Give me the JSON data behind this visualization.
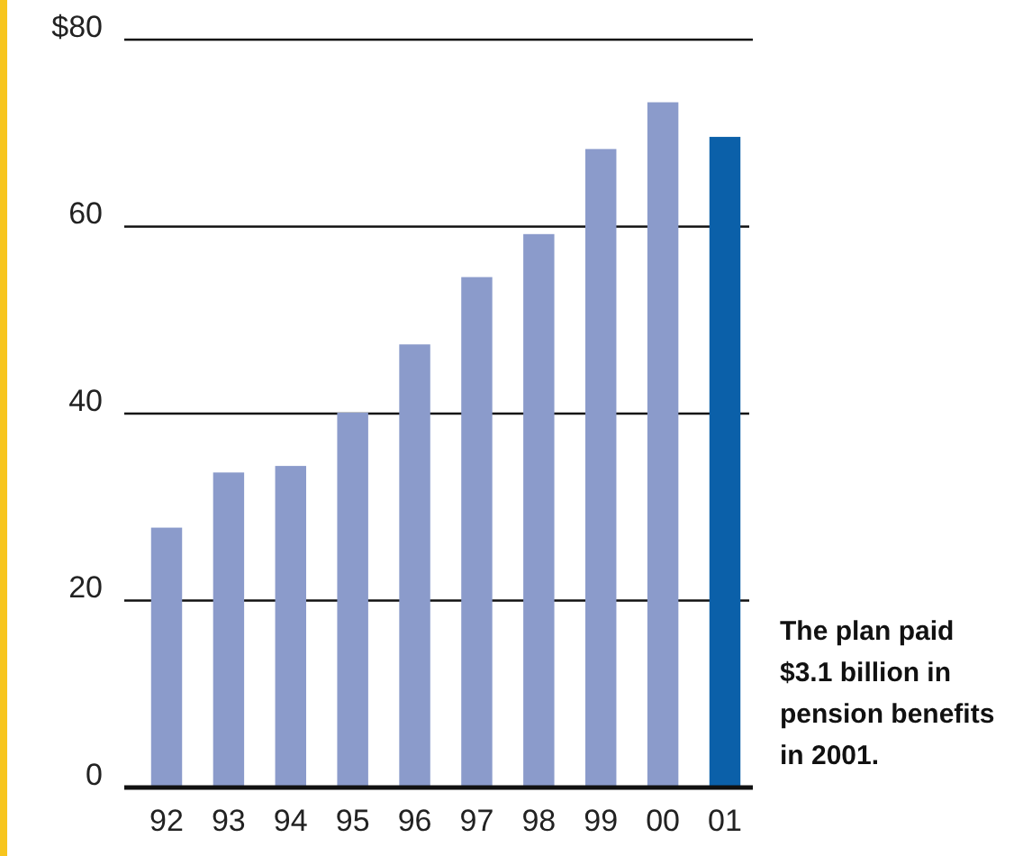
{
  "chart_data": {
    "type": "bar",
    "categories": [
      "92",
      "93",
      "94",
      "95",
      "96",
      "97",
      "98",
      "99",
      "00",
      "01"
    ],
    "values": [
      27.8,
      33.7,
      34.4,
      40.1,
      47.4,
      54.6,
      59.2,
      68.3,
      73.3,
      69.6
    ],
    "colors": [
      "#8b9bcb",
      "#8b9bcb",
      "#8b9bcb",
      "#8b9bcb",
      "#8b9bcb",
      "#8b9bcb",
      "#8b9bcb",
      "#8b9bcb",
      "#8b9bcb",
      "#0b60a9"
    ],
    "ylim": [
      0,
      80
    ],
    "yticks": [
      0,
      20,
      40,
      60,
      {
        "value": 80,
        "label": "$80"
      }
    ],
    "grid": "y",
    "annotations": [
      "The plan paid $3.1 billion in pension benefits in 2001."
    ]
  }
}
